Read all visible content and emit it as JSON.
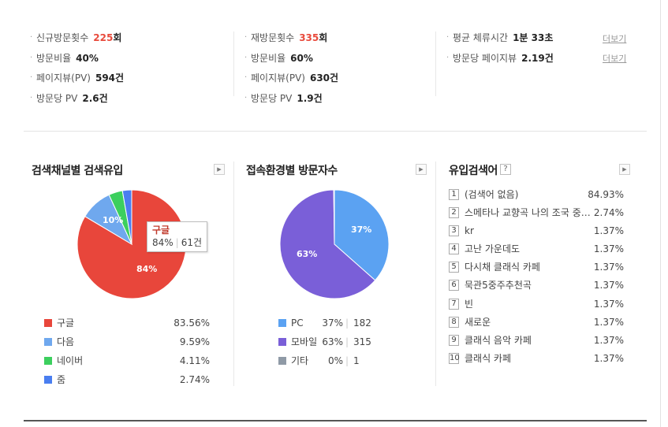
{
  "stats": {
    "new_visit": {
      "label": "신규방문횟수",
      "value": "225",
      "unit": "회"
    },
    "new_ratio": {
      "label": "방문비율",
      "value": "40%"
    },
    "new_pv": {
      "label": "페이지뷰(PV)",
      "value": "594",
      "unit": "건"
    },
    "new_pv_per": {
      "label": "방문당 PV",
      "value": "2.6",
      "unit": "건"
    },
    "re_visit": {
      "label": "재방문횟수",
      "value": "335",
      "unit": "회"
    },
    "re_ratio": {
      "label": "방문비율",
      "value": "60%"
    },
    "re_pv": {
      "label": "페이지뷰(PV)",
      "value": "630",
      "unit": "건"
    },
    "re_pv_per": {
      "label": "방문당 PV",
      "value": "1.9",
      "unit": "건"
    },
    "avg_stay": {
      "label": "평균 체류시간",
      "value": "1분 33초"
    },
    "pages_per_visit": {
      "label": "방문당 페이지뷰",
      "value": "2.19",
      "unit": "건"
    },
    "more_label": "더보기"
  },
  "search_channel": {
    "title": "검색채널별 검색유입",
    "tooltip": {
      "name": "구글",
      "pct": "84%",
      "count": "61건"
    },
    "pie_labels": {
      "big": "84%",
      "small": "10%"
    },
    "items": [
      {
        "label": "구글",
        "pct": "83.56%",
        "color": "#e8463b"
      },
      {
        "label": "다음",
        "pct": "9.59%",
        "color": "#6fa8ee"
      },
      {
        "label": "네이버",
        "pct": "4.11%",
        "color": "#3ccf5e"
      },
      {
        "label": "줌",
        "pct": "2.74%",
        "color": "#4a7ef0"
      }
    ]
  },
  "environment": {
    "title": "접속환경별 방문자수",
    "pie_labels": {
      "pc": "37%",
      "mobile": "63%"
    },
    "items": [
      {
        "label": "PC",
        "pct": "37%",
        "count": "182",
        "color": "#5ba2f2"
      },
      {
        "label": "모바일",
        "pct": "63%",
        "count": "315",
        "color": "#7a5fd8"
      },
      {
        "label": "기타",
        "pct": "0%",
        "count": "1",
        "color": "#8f9aa6"
      }
    ]
  },
  "keywords": {
    "title": "유입검색어",
    "help": "?",
    "items": [
      {
        "rank": "1",
        "keyword": "(검색어 없음)",
        "pct": "84.93%"
      },
      {
        "rank": "2",
        "keyword": "스메타나 교향곡 나의 조국 중…",
        "pct": "2.74%"
      },
      {
        "rank": "3",
        "keyword": "kr",
        "pct": "1.37%"
      },
      {
        "rank": "4",
        "keyword": "고난 가운데도",
        "pct": "1.37%"
      },
      {
        "rank": "5",
        "keyword": "다시채 클래식 카페",
        "pct": "1.37%"
      },
      {
        "rank": "6",
        "keyword": "묵관5중주추천곡",
        "pct": "1.37%"
      },
      {
        "rank": "7",
        "keyword": "빈",
        "pct": "1.37%"
      },
      {
        "rank": "8",
        "keyword": "새로운",
        "pct": "1.37%"
      },
      {
        "rank": "9",
        "keyword": "클래식 음악 카페",
        "pct": "1.37%"
      },
      {
        "rank": "10",
        "keyword": "클래식 카페",
        "pct": "1.37%"
      }
    ]
  },
  "chart_data": [
    {
      "type": "pie",
      "title": "검색채널별 검색유입",
      "categories": [
        "구글",
        "다음",
        "네이버",
        "줌"
      ],
      "values": [
        83.56,
        9.59,
        4.11,
        2.74
      ],
      "colors": [
        "#e8463b",
        "#6fa8ee",
        "#3ccf5e",
        "#4a7ef0"
      ]
    },
    {
      "type": "pie",
      "title": "접속환경별 방문자수",
      "categories": [
        "PC",
        "모바일",
        "기타"
      ],
      "values": [
        182,
        315,
        1
      ],
      "colors": [
        "#5ba2f2",
        "#7a5fd8",
        "#8f9aa6"
      ]
    }
  ]
}
